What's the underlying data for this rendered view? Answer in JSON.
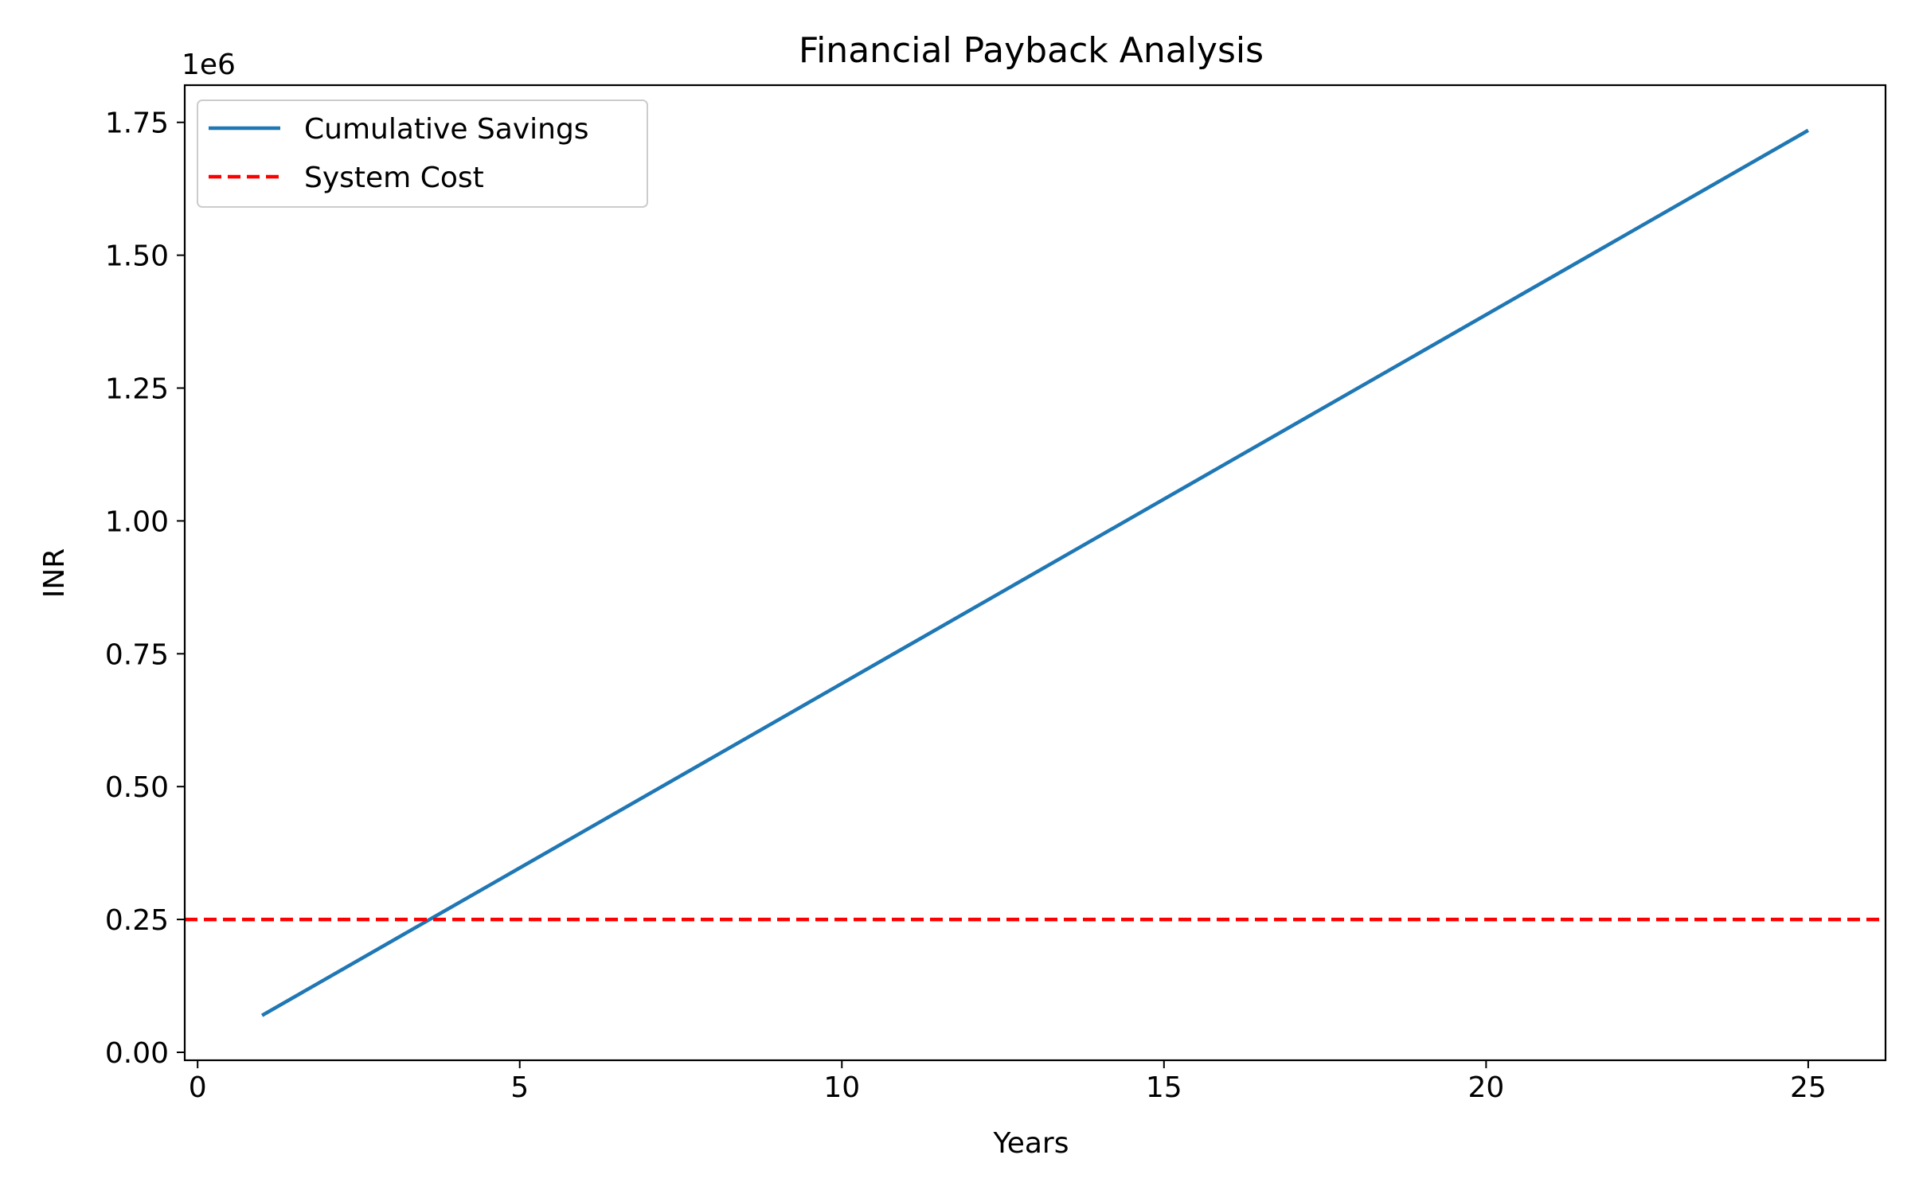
{
  "chart_data": {
    "type": "line",
    "title": "Financial Payback Analysis",
    "xlabel": "Years",
    "ylabel": "INR",
    "y_offset_label": "1e6",
    "xlim": [
      -0.2,
      26.2
    ],
    "ylim": [
      -0.015,
      1.82
    ],
    "x_ticks": [
      0,
      5,
      10,
      15,
      20,
      25
    ],
    "x_tick_labels": [
      "0",
      "5",
      "10",
      "15",
      "20",
      "25"
    ],
    "y_ticks": [
      0.0,
      0.25,
      0.5,
      0.75,
      1.0,
      1.25,
      1.5,
      1.75
    ],
    "y_tick_labels": [
      "0.00",
      "0.25",
      "0.50",
      "0.75",
      "1.00",
      "1.25",
      "1.50",
      "1.75"
    ],
    "grid": false,
    "legend_position": "top-left",
    "series": [
      {
        "name": "Cumulative Savings",
        "style": "solid",
        "color": "#1f77b4",
        "x": [
          1,
          25
        ],
        "y": [
          0.0694,
          1.735
        ]
      },
      {
        "name": "System Cost",
        "style": "dashed",
        "color": "#ff0000",
        "y": 0.25
      }
    ]
  }
}
